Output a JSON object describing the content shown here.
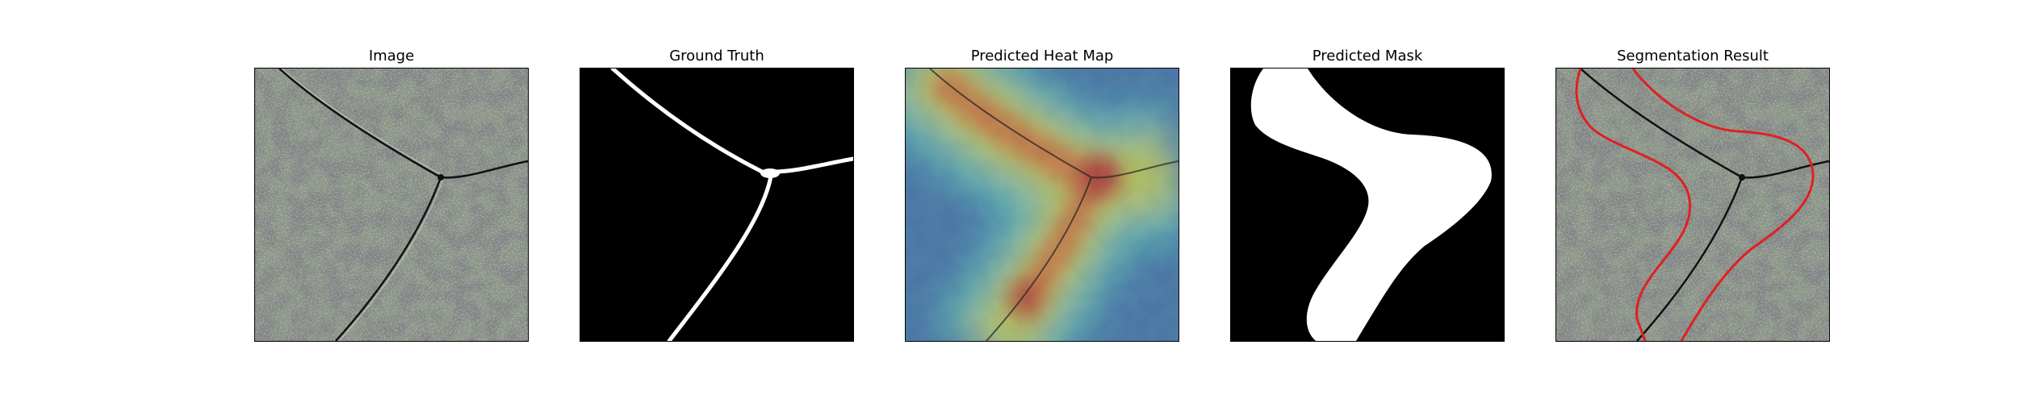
{
  "figure": {
    "panels": [
      {
        "title": "Image"
      },
      {
        "title": "Ground Truth"
      },
      {
        "title": "Predicted Heat Map"
      },
      {
        "title": "Predicted Mask"
      },
      {
        "title": "Segmentation Result"
      }
    ],
    "colors": {
      "mask_foreground": "#ffffff",
      "mask_background": "#000000",
      "contour": "#e02020",
      "texture_light": "#8c9488",
      "texture_dark": "#3a3d3b"
    }
  }
}
